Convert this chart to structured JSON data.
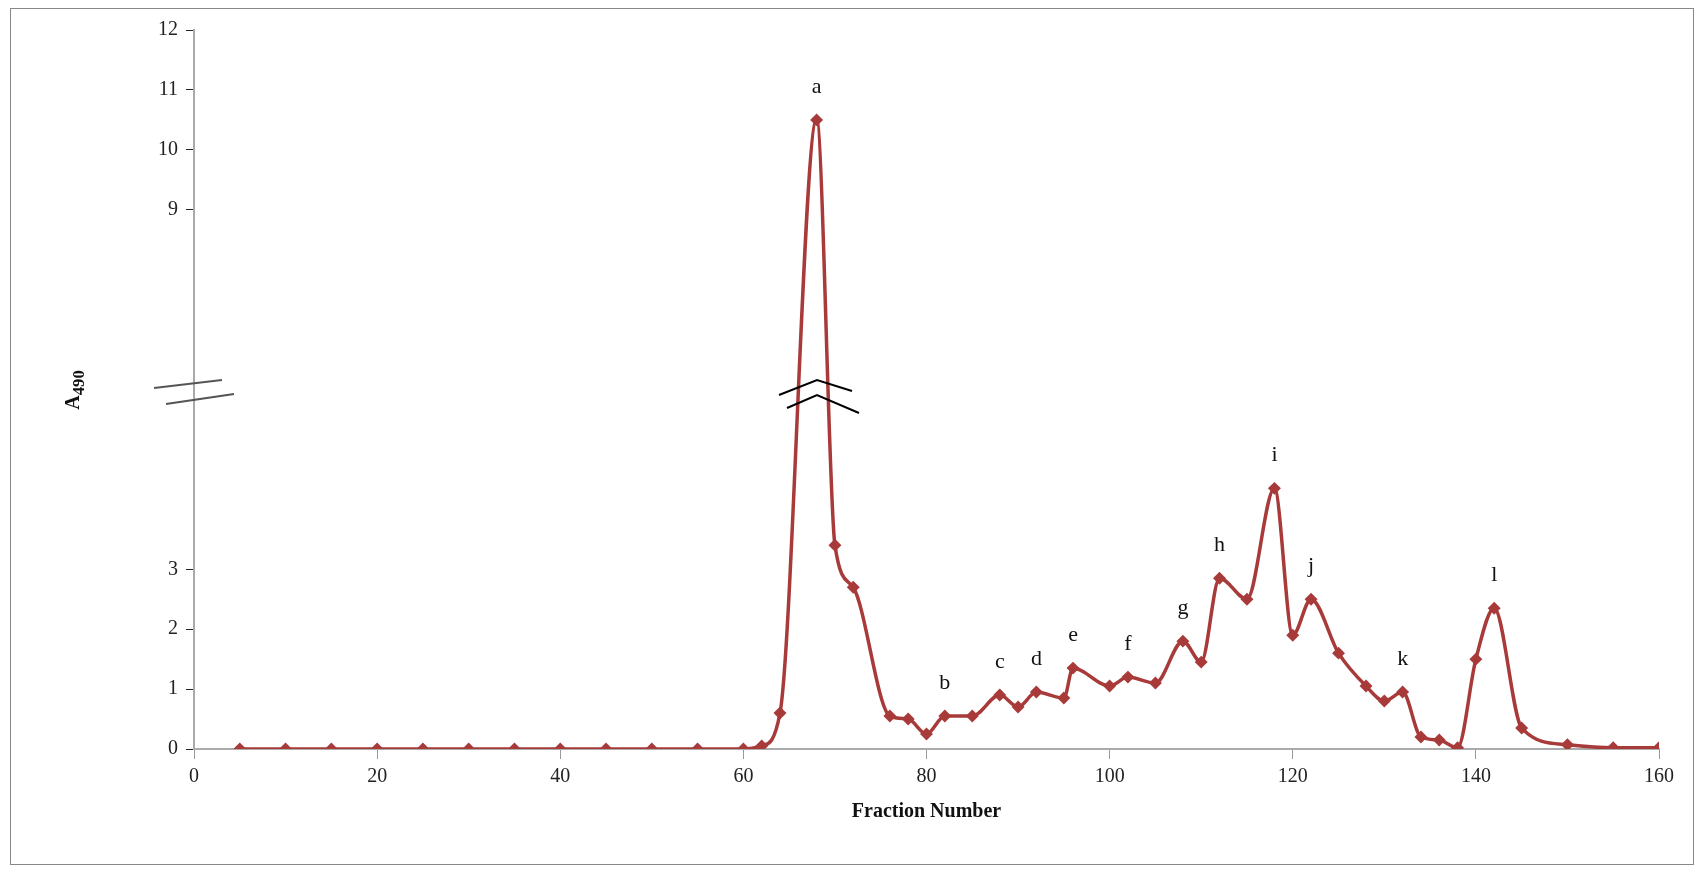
{
  "chart_data": {
    "type": "line",
    "xlabel": "Fraction Number",
    "ylabel": "A$_{490}$",
    "xlim": [
      0,
      160
    ],
    "xticks": [
      0,
      20,
      40,
      60,
      80,
      100,
      120,
      140,
      160
    ],
    "ylim": [
      0,
      12
    ],
    "yticks": [
      0,
      1,
      2,
      3,
      9,
      10,
      11,
      12
    ],
    "grid": false,
    "legend": false,
    "marker": "diamond",
    "line_style": "solid",
    "series": [
      {
        "color": "#a83a3a",
        "x": [
          5,
          10,
          15,
          20,
          25,
          30,
          35,
          40,
          45,
          50,
          55,
          60,
          62,
          64,
          68,
          70,
          72,
          76,
          78,
          80,
          82,
          85,
          88,
          90,
          92,
          95,
          96,
          100,
          102,
          105,
          108,
          110,
          112,
          115,
          118,
          120,
          122,
          125,
          128,
          130,
          132,
          134,
          136,
          138,
          140,
          142,
          145,
          150,
          155,
          160
        ],
        "values": [
          0,
          0,
          0,
          0,
          0,
          0,
          0,
          0,
          0,
          0,
          0,
          0,
          0.05,
          0.6,
          10.5,
          3.4,
          2.7,
          0.55,
          0.5,
          0.25,
          0.55,
          0.55,
          0.9,
          0.7,
          0.95,
          0.85,
          1.35,
          1.05,
          1.2,
          1.1,
          1.8,
          1.45,
          2.85,
          2.5,
          4.35,
          1.9,
          2.5,
          1.6,
          1.05,
          0.8,
          0.95,
          0.2,
          0.15,
          0.02,
          1.5,
          2.35,
          0.35,
          0.07,
          0.02,
          0.02
        ]
      }
    ],
    "annotations": [
      {
        "text": "a",
        "x": 68,
        "y": 10.5
      },
      {
        "text": "b",
        "x": 82,
        "y": 0.55
      },
      {
        "text": "c",
        "x": 88,
        "y": 0.9
      },
      {
        "text": "d",
        "x": 92,
        "y": 0.95
      },
      {
        "text": "e",
        "x": 96,
        "y": 1.35
      },
      {
        "text": "f",
        "x": 102,
        "y": 1.2
      },
      {
        "text": "g",
        "x": 108,
        "y": 1.8
      },
      {
        "text": "h",
        "x": 112,
        "y": 2.85
      },
      {
        "text": "i",
        "x": 118,
        "y": 4.35
      },
      {
        "text": "j",
        "x": 122,
        "y": 2.5
      },
      {
        "text": "k",
        "x": 132,
        "y": 0.95
      },
      {
        "text": "l",
        "x": 142,
        "y": 2.35
      }
    ]
  }
}
